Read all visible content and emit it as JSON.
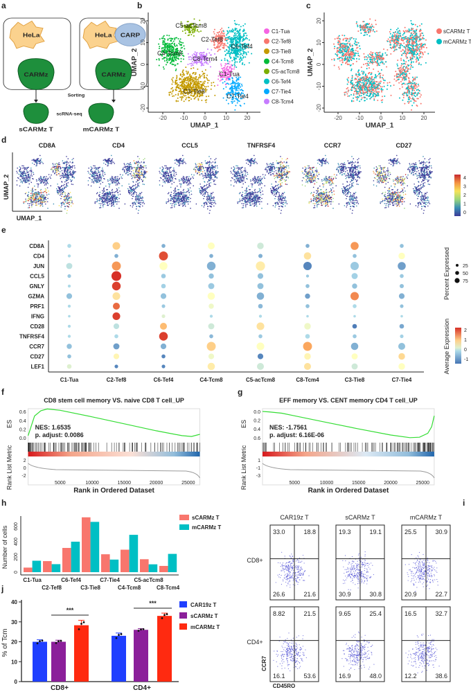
{
  "panel_labels": [
    "a",
    "b",
    "c",
    "d",
    "e",
    "f",
    "g",
    "h",
    "i",
    "j"
  ],
  "panel_a": {
    "hela": "HeLa",
    "carp": "CARP",
    "carmz": "CARMz",
    "sorting": "Sorting",
    "scrna": "scRNA-seq",
    "s_label": "sCARMz T",
    "m_label": "mCARMz T",
    "colors": {
      "hela": "#fbd28e",
      "carp": "#a9c3e3",
      "cell": "#1e8f3c"
    }
  },
  "chart_data": [
    {
      "panel": "b",
      "type": "scatter",
      "xlabel": "UMAP_1",
      "ylabel": "UMAP_2",
      "xticks": [
        "-20",
        "-10",
        "0",
        "10",
        "20"
      ],
      "yticks": [
        "20",
        "10",
        "0",
        "-10",
        "-20"
      ],
      "xlim": [
        -25,
        23
      ],
      "ylim": [
        -21,
        23
      ],
      "legend_placement": "right",
      "clusters": [
        {
          "name": "C1-Tua",
          "color": "#f564e3"
        },
        {
          "name": "C2-Tef8",
          "color": "#f8766d"
        },
        {
          "name": "C3-Tie8",
          "color": "#c49a00"
        },
        {
          "name": "C4-Tcm8",
          "color": "#00ba38"
        },
        {
          "name": "C5-acTcm8",
          "color": "#7cae00"
        },
        {
          "name": "C6-Tef4",
          "color": "#00bfc4"
        },
        {
          "name": "C7-Tie4",
          "color": "#00a9ff"
        },
        {
          "name": "C8-Tcm4",
          "color": "#c77cff"
        }
      ]
    },
    {
      "panel": "c",
      "type": "scatter",
      "xlabel": "UMAP_1",
      "ylabel": "UMAP_2",
      "xticks": [
        "-20",
        "-10",
        "0",
        "10",
        "20"
      ],
      "yticks": [
        "20",
        "10",
        "0",
        "-10",
        "-20"
      ],
      "legend_placement": "right",
      "series": [
        {
          "name": "sCARMz T",
          "color": "#f8766d"
        },
        {
          "name": "mCARMz T",
          "color": "#00bfc4"
        }
      ]
    },
    {
      "panel": "d",
      "type": "scatter",
      "xlabel": "UMAP_1",
      "ylabel": "UMAP_2",
      "features": [
        "CD8A",
        "CD4",
        "CCL5",
        "TNFRSF4",
        "CCR7",
        "CD27"
      ],
      "colorbar": {
        "ticks": [
          "4",
          "3",
          "2",
          "1",
          "0"
        ],
        "range": [
          0,
          4.4
        ]
      }
    },
    {
      "panel": "e",
      "type": "dot",
      "genes": [
        "CD8A",
        "CD4",
        "JUN",
        "CCL5",
        "GNLY",
        "GZMA",
        "PRF1",
        "IFNG",
        "CD28",
        "TNFRSF4",
        "CCR7",
        "CD27",
        "LEF1"
      ],
      "clusters": [
        "C1-Tua",
        "C2-Tef8",
        "C6-Tef4",
        "C4-Tcm8",
        "C5-acTcm8",
        "C8-Tcm4",
        "C3-Tie8",
        "C7-Tie4"
      ],
      "avg_expression": [
        [
          0,
          1,
          -0.5,
          0.5,
          0.2,
          -0.5,
          1.5,
          -0.3
        ],
        [
          0,
          -0.5,
          2,
          -0.5,
          -0.5,
          0.8,
          -0.3,
          0.5
        ],
        [
          0.1,
          1.5,
          0.5,
          -0.5,
          0.7,
          -1,
          -0.2,
          -0.7
        ],
        [
          -0.2,
          2.2,
          -0.2,
          -0.3,
          -0.3,
          -0.2,
          -0.1,
          -0.2
        ],
        [
          0,
          2.1,
          -0.1,
          -0.2,
          -0.3,
          -0.3,
          -0.3,
          -0.3
        ],
        [
          -0.3,
          0.8,
          -0.3,
          0.5,
          -0.5,
          -0.7,
          1.6,
          -0.5
        ],
        [
          0,
          1.8,
          -0.2,
          0.4,
          -0.4,
          -0.3,
          0,
          -0.3
        ],
        [
          0,
          2.1,
          0.3,
          0,
          0,
          0,
          0,
          0
        ],
        [
          0,
          0.1,
          1.2,
          0.2,
          0.8,
          0.4,
          -1.1,
          -0.6
        ],
        [
          0,
          0,
          2.1,
          -0.4,
          -0.2,
          0,
          -0.2,
          -0.1
        ],
        [
          -0.3,
          -0.7,
          -0.5,
          1,
          0.5,
          1.4,
          -0.5,
          -0.3
        ],
        [
          -0.3,
          0.6,
          -1,
          0.4,
          -1,
          0.6,
          0.5,
          0.9
        ],
        [
          0.3,
          -1,
          -1,
          0.7,
          0.2,
          0.8,
          0.2,
          0.5
        ]
      ],
      "percent_expressed": [
        [
          10,
          50,
          10,
          40,
          35,
          10,
          55,
          10
        ],
        [
          5,
          10,
          70,
          10,
          12,
          45,
          10,
          35
        ],
        [
          30,
          70,
          55,
          65,
          75,
          60,
          60,
          55
        ],
        [
          8,
          85,
          15,
          20,
          25,
          5,
          30,
          10
        ],
        [
          5,
          65,
          15,
          30,
          30,
          10,
          20,
          12
        ],
        [
          25,
          50,
          25,
          45,
          45,
          20,
          60,
          25
        ],
        [
          5,
          40,
          8,
          20,
          15,
          10,
          10,
          8
        ],
        [
          3,
          50,
          8,
          5,
          5,
          3,
          3,
          3
        ],
        [
          5,
          25,
          40,
          30,
          50,
          35,
          15,
          15
        ],
        [
          5,
          10,
          65,
          10,
          10,
          15,
          10,
          8
        ],
        [
          20,
          30,
          25,
          70,
          50,
          70,
          45,
          40
        ],
        [
          10,
          25,
          10,
          25,
          25,
          35,
          30,
          35
        ],
        [
          15,
          8,
          8,
          45,
          40,
          40,
          30,
          35
        ]
      ],
      "size_legend": {
        "title": "Percent Expressed",
        "values": [
          "25",
          "50",
          "75"
        ]
      },
      "color_legend": {
        "title": "Average Expression",
        "ticks": [
          "2",
          "1",
          "0",
          "-1"
        ],
        "range": [
          -1.2,
          2.2
        ]
      }
    },
    {
      "panel": "f",
      "type": "line",
      "title": "CD8 stem cell memory VS. naive CD8 T cell_UP",
      "ylabel": "ES",
      "ylabel2": "Rank List Metric",
      "xlabel": "Rank in Ordered Dataset",
      "yticks": [
        "0.6",
        "0.4",
        "0.2",
        "0.0"
      ],
      "y2ticks": [
        "2",
        "0",
        "-2"
      ],
      "xticks": [
        "5000",
        "10000",
        "15000",
        "20000",
        "25000"
      ],
      "nes": "NES: 1.6535",
      "padj": "p. adjust: 0.0086",
      "x": [
        0,
        1000,
        2000,
        3000,
        5000,
        10000,
        15000,
        20000,
        24000,
        25500,
        26800
      ],
      "es": [
        0.05,
        0.5,
        0.62,
        0.66,
        0.63,
        0.48,
        0.32,
        0.16,
        0.05,
        0.03,
        0.08
      ],
      "line_color": "#33dd33"
    },
    {
      "panel": "g",
      "type": "line",
      "title": "EFF memory VS. CENT memory CD4 T cell_UP",
      "ylabel": "ES",
      "ylabel2": "Rank List Metric",
      "xlabel": "Rank in Ordered Dataset",
      "yticks": [
        "0.0",
        "0.2",
        "0.4",
        "0.6"
      ],
      "y2ticks": [
        "1",
        "-1",
        "-3"
      ],
      "xticks": [
        "5000",
        "10000",
        "15000",
        "20000",
        "25000"
      ],
      "nes": "NES: -1.7561",
      "padj": "p. adjust: 6.16E-06",
      "x": [
        0,
        1000,
        3000,
        5000,
        10000,
        15000,
        20000,
        23000,
        24500,
        25800,
        26400,
        26800
      ],
      "es": [
        0,
        -0.01,
        -0.04,
        -0.1,
        -0.25,
        -0.4,
        -0.54,
        -0.6,
        -0.59,
        -0.5,
        -0.35,
        -0.1
      ],
      "line_color": "#33dd33"
    },
    {
      "panel": "h",
      "type": "bar",
      "ylabel": "Number of cells",
      "yticks": [
        "0",
        "200",
        "400",
        "600"
      ],
      "ylim": [
        0,
        760
      ],
      "categories": [
        "C1-Tua",
        "C2-Tef8",
        "C6-Tef4",
        "C3-Tie8",
        "C7-Tie4",
        "C4-Tcm8",
        "C5-acTcm8",
        "C8-Tcm4"
      ],
      "legend_placement": "top-right",
      "series": [
        {
          "name": "sCARMz T",
          "color": "#f8766d",
          "values": [
            60,
            145,
            318,
            720,
            235,
            295,
            170,
            82
          ]
        },
        {
          "name": "mCARMz T",
          "color": "#00bfc4",
          "values": [
            150,
            105,
            400,
            660,
            165,
            490,
            103,
            240
          ]
        }
      ]
    },
    {
      "panel": "i",
      "type": "scatter",
      "xlabel": "CD45RO",
      "ylabel": "CCR7",
      "columns": [
        "CAR19z T",
        "sCARMz T",
        "mCARMz T"
      ],
      "rows": [
        "CD8+",
        "CD4+"
      ],
      "quadrants_order": [
        "top-left",
        "top-right",
        "bottom-left",
        "bottom-right"
      ],
      "quadrants": [
        [
          [
            "33.0",
            "18.8",
            "26.6",
            "21.6"
          ],
          [
            "19.3",
            "19.1",
            "30.9",
            "30.8"
          ],
          [
            "25.5",
            "30.9",
            "20.9",
            "22.7"
          ]
        ],
        [
          [
            "8.82",
            "21.5",
            "16.1",
            "53.6"
          ],
          [
            "9.65",
            "25.4",
            "16.9",
            "48.0"
          ],
          [
            "16.5",
            "32.7",
            "12.2",
            "38.6"
          ]
        ]
      ],
      "point_color": "#3a3ad0"
    },
    {
      "panel": "j",
      "type": "bar",
      "ylabel": "% of Tcm",
      "yticks": [
        "0",
        "10",
        "20",
        "30",
        "40"
      ],
      "ylim": [
        0,
        40
      ],
      "categories": [
        "CD8+",
        "CD4+"
      ],
      "legend_placement": "top-right",
      "series": [
        {
          "name": "CAR19z T",
          "color": "#1f3fff",
          "values": [
            20,
            23
          ],
          "err": [
            1,
            1.4
          ]
        },
        {
          "name": "sCARMz T",
          "color": "#8b1f9a",
          "values": [
            20,
            26
          ],
          "err": [
            0.8,
            0.6
          ]
        },
        {
          "name": "mCARMz T",
          "color": "#ff2a10",
          "values": [
            28.3,
            33
          ],
          "err": [
            2.5,
            1.4
          ]
        }
      ],
      "significance": [
        "***",
        "***"
      ]
    }
  ]
}
